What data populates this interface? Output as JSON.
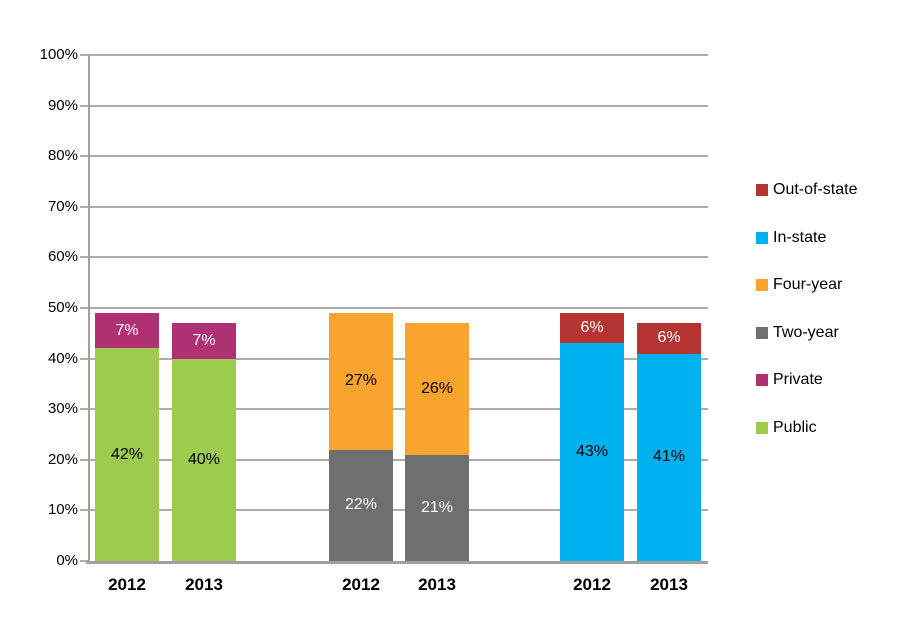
{
  "chart_data": {
    "type": "bar",
    "stacked": true,
    "title": "",
    "xlabel": "",
    "ylabel": "",
    "ylim": [
      0,
      100
    ],
    "grid": true,
    "legend_position": "right",
    "y_ticks": [
      {
        "value": 0,
        "label": "0%"
      },
      {
        "value": 10,
        "label": "10%"
      },
      {
        "value": 20,
        "label": "20%"
      },
      {
        "value": 30,
        "label": "30%"
      },
      {
        "value": 40,
        "label": "40%"
      },
      {
        "value": 50,
        "label": "50%"
      },
      {
        "value": 60,
        "label": "60%"
      },
      {
        "value": 70,
        "label": "70%"
      },
      {
        "value": 80,
        "label": "80%"
      },
      {
        "value": 90,
        "label": "90%"
      },
      {
        "value": 100,
        "label": "100%"
      }
    ],
    "series": [
      {
        "name": "Public",
        "color": "#9CCB4E",
        "value_label_color": "#000000"
      },
      {
        "name": "Private",
        "color": "#B03173",
        "value_label_color": "#ffffff"
      },
      {
        "name": "Two-year",
        "color": "#6F6F6F",
        "value_label_color": "#ffffff"
      },
      {
        "name": "Four-year",
        "color": "#F9A42C",
        "value_label_color": "#000000"
      },
      {
        "name": "In-state",
        "color": "#00B1EF",
        "value_label_color": "#000000"
      },
      {
        "name": "Out-of-state",
        "color": "#B53431",
        "value_label_color": "#ffffff"
      }
    ],
    "bars": [
      {
        "x": "2012",
        "group": 0,
        "segments": [
          {
            "series": "Public",
            "value": 42,
            "label": "42%"
          },
          {
            "series": "Private",
            "value": 7,
            "label": "7%"
          }
        ]
      },
      {
        "x": "2013",
        "group": 0,
        "segments": [
          {
            "series": "Public",
            "value": 40,
            "label": "40%"
          },
          {
            "series": "Private",
            "value": 7,
            "label": "7%"
          }
        ]
      },
      {
        "x": "2012",
        "group": 1,
        "segments": [
          {
            "series": "Two-year",
            "value": 22,
            "label": "22%"
          },
          {
            "series": "Four-year",
            "value": 27,
            "label": "27%"
          }
        ]
      },
      {
        "x": "2013",
        "group": 1,
        "segments": [
          {
            "series": "Two-year",
            "value": 21,
            "label": "21%"
          },
          {
            "series": "Four-year",
            "value": 26,
            "label": "26%"
          }
        ]
      },
      {
        "x": "2012",
        "group": 2,
        "segments": [
          {
            "series": "In-state",
            "value": 43,
            "label": "43%"
          },
          {
            "series": "Out-of-state",
            "value": 6,
            "label": "6%"
          }
        ]
      },
      {
        "x": "2013",
        "group": 2,
        "segments": [
          {
            "series": "In-state",
            "value": 41,
            "label": "41%"
          },
          {
            "series": "Out-of-state",
            "value": 6,
            "label": "6%"
          }
        ]
      }
    ],
    "legend": [
      {
        "label": "Out-of-state",
        "color": "#B53431"
      },
      {
        "label": "In-state",
        "color": "#00B1EF"
      },
      {
        "label": "Four-year",
        "color": "#F9A42C"
      },
      {
        "label": "Two-year",
        "color": "#6F6F6F"
      },
      {
        "label": "Private",
        "color": "#B03173"
      },
      {
        "label": "Public",
        "color": "#9CCB4E"
      }
    ],
    "colors": {
      "background": "#ffffff",
      "gridline": "#ADADAD",
      "axis": "#A0A0A0"
    }
  }
}
